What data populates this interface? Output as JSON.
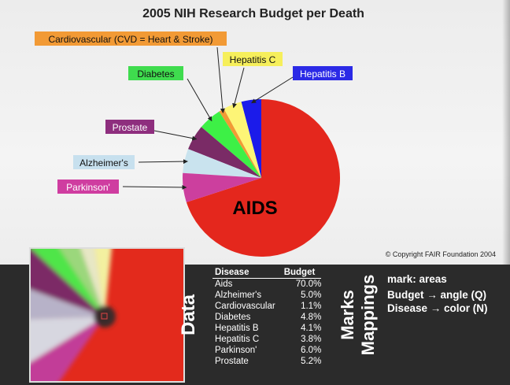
{
  "chart_data": {
    "type": "pie",
    "title": "2005 NIH Research Budget per Death",
    "series": [
      {
        "name": "Aids",
        "label": "AIDS",
        "value": 70.0,
        "color": "#e4271d"
      },
      {
        "name": "Parkinson'",
        "label": "Parkinson'",
        "value": 6.0,
        "color": "#cc3f9e"
      },
      {
        "name": "Alzheimer's",
        "label": "Alzheimer's",
        "value": 5.0,
        "color": "#c9e3ee"
      },
      {
        "name": "Prostate",
        "label": "Prostate",
        "value": 5.2,
        "color": "#7a2b66"
      },
      {
        "name": "Diabetes",
        "label": "Diabetes",
        "value": 4.8,
        "color": "#3df046"
      },
      {
        "name": "Cardiovascular",
        "label": "Cardiovascular (CVD = Heart & Stroke)",
        "value": 1.1,
        "color": "#f29a35"
      },
      {
        "name": "Hepatitis C",
        "label": "Hepatitis C",
        "value": 3.8,
        "color": "#fdf576"
      },
      {
        "name": "Hepatitis B",
        "label": "Hepatitis B",
        "value": 4.1,
        "color": "#1b1bea"
      }
    ],
    "label_colors": {
      "Cardiovascular": "#f29a35",
      "Diabetes": "#3fdc4e",
      "Hepatitis C": "#f6ef5b",
      "Hepatitis B": "#2b2ae6",
      "Prostate": "#8e2e7e",
      "Alzheimer's": "#c7e0ee",
      "Parkinson'": "#cf3da0"
    },
    "copyright": "© Copyright FAIR Foundation 2004"
  },
  "data_panel": {
    "title": "Data",
    "headers": [
      "Disease",
      "Budget"
    ],
    "rows": [
      [
        "Aids",
        "70.0%"
      ],
      [
        "Alzheimer's",
        "5.0%"
      ],
      [
        "Cardiovascular",
        "1.1%"
      ],
      [
        "Diabetes",
        "4.8%"
      ],
      [
        "Hepatitis B",
        "4.1%"
      ],
      [
        "Hepatitis C",
        "3.8%"
      ],
      [
        "Parkinson'",
        "6.0%"
      ],
      [
        "Prostate",
        "5.2%"
      ]
    ]
  },
  "marks_panel": {
    "marks_title": "Marks",
    "mappings_title": "Mappings",
    "lines": [
      "mark: areas",
      "Budget → angle (Q)",
      "Disease → color (N)"
    ]
  }
}
